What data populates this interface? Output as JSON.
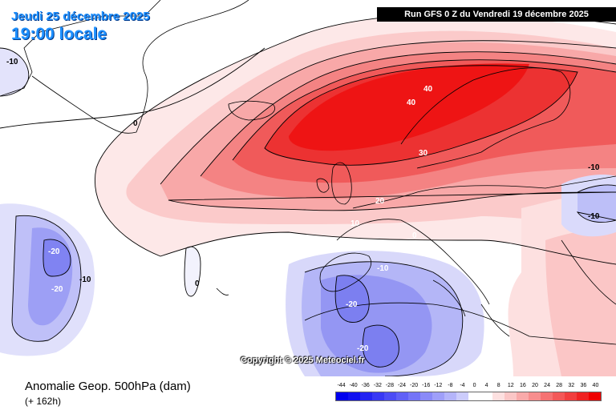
{
  "header": {
    "date": "Jeudi 25 décembre 2025",
    "time": "19:00 locale",
    "run_info": "Run GFS 0 Z du Vendredi 19 décembre 2025"
  },
  "copyright": "Copyright © 2025 Meteociel.fr",
  "footer": {
    "title": "Anomalie Geop. 500hPa (dam)",
    "forecast": "(+ 162h)"
  },
  "legend": {
    "labels": [
      "-44",
      "-40",
      "-36",
      "-32",
      "-28",
      "-24",
      "-20",
      "-16",
      "-12",
      "-8",
      "-4",
      "0",
      "4",
      "8",
      "12",
      "16",
      "20",
      "24",
      "28",
      "32",
      "36",
      "40"
    ],
    "colors": [
      "#0000ee",
      "#1010f0",
      "#2424f2",
      "#3838f4",
      "#4c4cf5",
      "#6060f6",
      "#7575f7",
      "#8a8af8",
      "#9f9ff9",
      "#b4b4fa",
      "#ccccfc",
      "#ffffff",
      "#ffffff",
      "#fde0e0",
      "#fbc6c6",
      "#f9aaaa",
      "#f78e8e",
      "#f57272",
      "#f35858",
      "#f13e3e",
      "#ef2222",
      "#ee0000"
    ]
  },
  "map_labels": [
    {
      "text": "-10"
    },
    {
      "text": "0"
    },
    {
      "text": "40"
    },
    {
      "text": "40"
    },
    {
      "text": "30"
    },
    {
      "text": "20"
    },
    {
      "text": "10"
    },
    {
      "text": "0"
    },
    {
      "text": "-10"
    },
    {
      "text": "-10"
    },
    {
      "text": "-20"
    },
    {
      "text": "-10"
    },
    {
      "text": "-20"
    },
    {
      "text": "0"
    },
    {
      "text": "-20"
    },
    {
      "text": "-20"
    },
    {
      "text": "-10"
    }
  ]
}
